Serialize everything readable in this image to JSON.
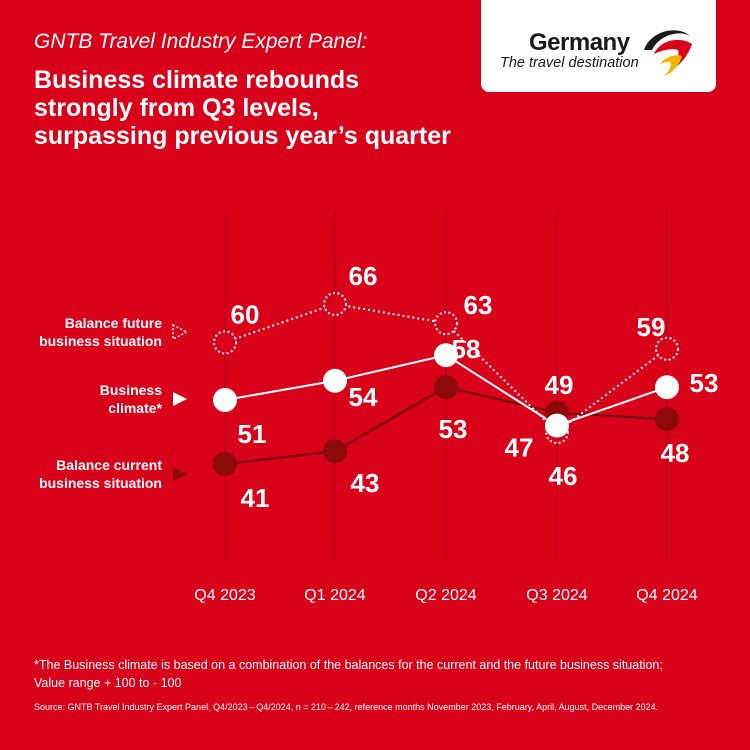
{
  "header": {
    "kicker": "GNTB Travel Industry Expert Panel:",
    "headline_lines": [
      "Business climate rebounds",
      "strongly from Q3 levels,",
      "surpassing previous year’s quarter"
    ]
  },
  "logo": {
    "name": "Germany",
    "tagline": "The travel destination",
    "icon": "eagle-swoosh-icon"
  },
  "colors": {
    "background": "#d9001a",
    "white": "#ffffff",
    "current": "#8c0a0a",
    "current_line": "#6b0a0a",
    "gridline": "#b80014",
    "logo_black": "#1a1a1a",
    "logo_gold": "#f2b800",
    "logo_red": "#d9001a"
  },
  "legend_labels": {
    "future": [
      "Balance future",
      "business situation"
    ],
    "climate": [
      "Business",
      "climate*"
    ],
    "current": [
      "Balance current",
      "business situation"
    ]
  },
  "chart_data": {
    "type": "line",
    "categories": [
      "Q4 2023",
      "Q1 2024",
      "Q2 2024",
      "Q3 2024",
      "Q4 2024"
    ],
    "series": [
      {
        "name": "Balance future business situation",
        "key": "future",
        "style": "dotted-hollow",
        "values": [
          60,
          66,
          63,
          46,
          59
        ]
      },
      {
        "name": "Business climate*",
        "key": "climate",
        "style": "solid-white",
        "values": [
          51,
          54,
          58,
          47,
          53
        ]
      },
      {
        "name": "Balance current business situation",
        "key": "current",
        "style": "solid-dark",
        "values": [
          41,
          43,
          53,
          49,
          48
        ]
      }
    ],
    "ylim": [
      36,
      72
    ],
    "grid": "vertical",
    "legend": "left",
    "title": "",
    "xlabel": "",
    "ylabel": ""
  },
  "footnote": {
    "line1": "*The Business climate is based on a combination of the balances for the current and the future business situation;",
    "line2": "Value range + 100 to - 100"
  },
  "source": "Source:  GNTB Travel Industry Expert Panel, Q4/2023 – Q4/2024, n = 210 – 242, reference months November 2023, February, April, August, December 2024."
}
